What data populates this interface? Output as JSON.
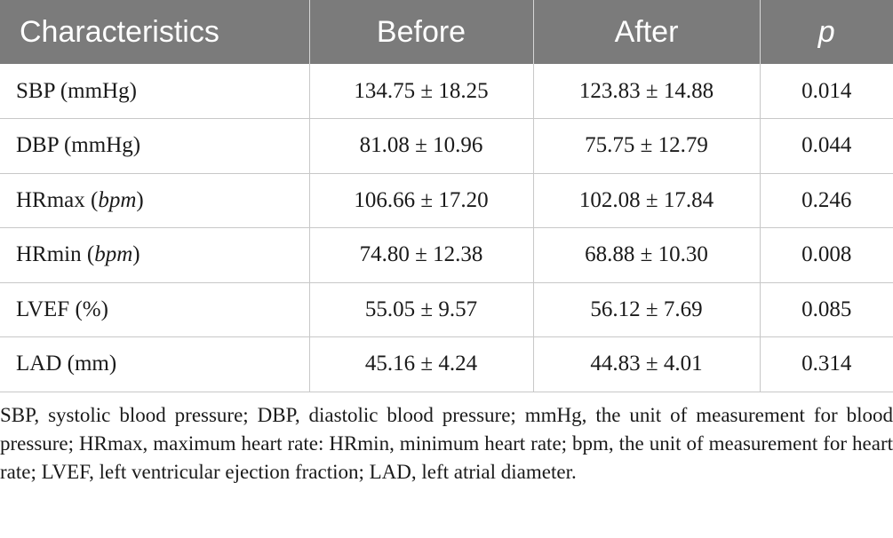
{
  "table": {
    "headers": [
      "Characteristics",
      "Before",
      "After",
      "p"
    ],
    "rows": [
      {
        "label": "SBP",
        "unit": "mmHg",
        "unit_italic": false,
        "before": "134.75 ± 18.25",
        "after": "123.83 ± 14.88",
        "p": "0.014"
      },
      {
        "label": "DBP",
        "unit": "mmHg",
        "unit_italic": false,
        "before": "81.08 ± 10.96",
        "after": "75.75 ± 12.79",
        "p": "0.044"
      },
      {
        "label": "HRmax",
        "unit": "bpm",
        "unit_italic": true,
        "before": "106.66 ± 17.20",
        "after": "102.08 ± 17.84",
        "p": "0.246"
      },
      {
        "label": "HRmin",
        "unit": "bpm",
        "unit_italic": true,
        "before": "74.80 ± 12.38",
        "after": "68.88 ± 10.30",
        "p": "0.008"
      },
      {
        "label": "LVEF",
        "unit": "%",
        "unit_italic": false,
        "before": "55.05 ± 9.57",
        "after": "56.12 ± 7.69",
        "p": "0.085"
      },
      {
        "label": "LAD",
        "unit": "mm",
        "unit_italic": false,
        "before": "45.16 ± 4.24",
        "after": "44.83 ± 4.01",
        "p": "0.314"
      }
    ]
  },
  "footnote": "SBP, systolic blood pressure; DBP, diastolic blood pressure; mmHg, the unit of measurement for blood pressure; HRmax, maximum heart rate: HRmin, minimum heart rate; bpm, the unit of measurement for heart rate; LVEF, left ventricular ejection fraction; LAD, left atrial diameter.",
  "colors": {
    "header_bg": "#7b7b7b",
    "header_text": "#ffffff",
    "grid": "#c8c8c8",
    "text": "#1a1a1a"
  }
}
